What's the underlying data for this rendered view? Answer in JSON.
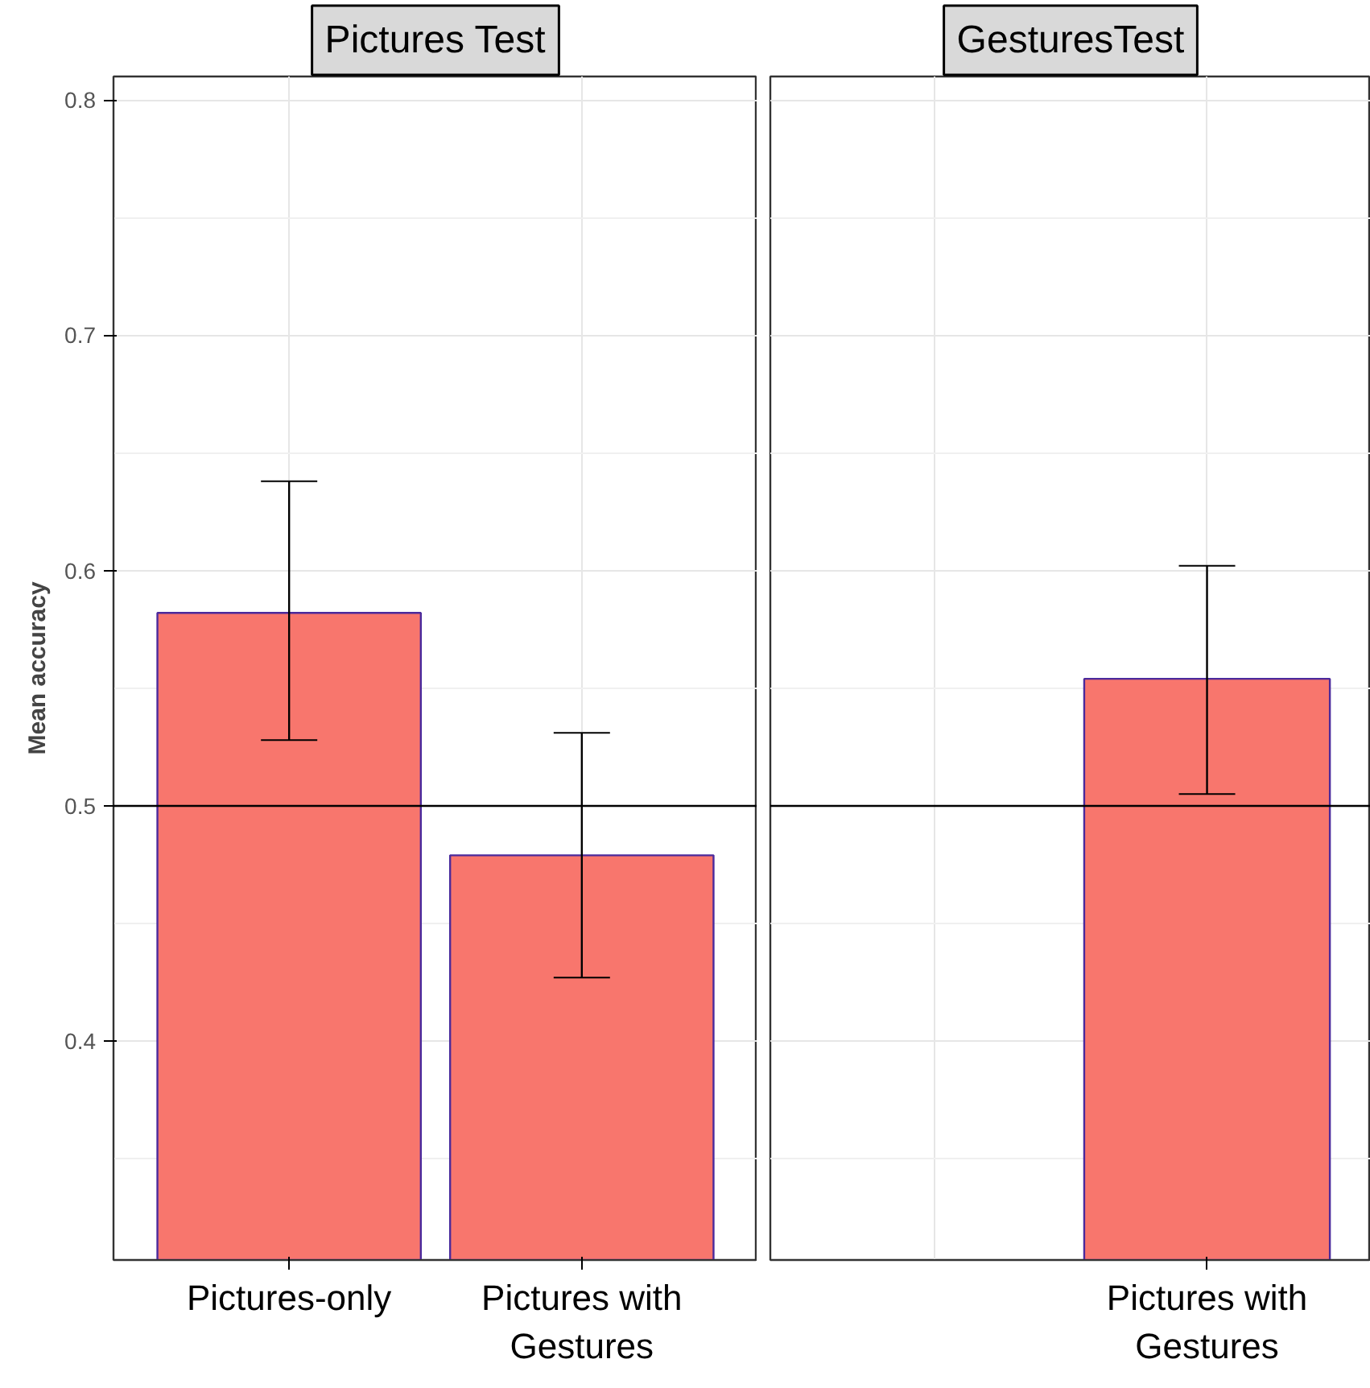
{
  "chart_data": [
    {
      "type": "bar",
      "title": "Pictures Test",
      "ylabel": "Mean accuracy",
      "categories": [
        "Pictures-only",
        "Pictures with Gestures"
      ],
      "values": [
        0.582,
        0.479
      ],
      "color": "#f8766d",
      "errors": [
        [
          0.528,
          0.638
        ],
        [
          0.427,
          0.531
        ]
      ],
      "ylim": [
        0.307,
        0.81
      ],
      "yticks": [
        0.4,
        0.5,
        0.6,
        0.7,
        0.8
      ],
      "grid": true,
      "ref_lines": [
        {
          "axis": "y",
          "value": 0.5
        }
      ]
    },
    {
      "type": "bar",
      "title": "GesturesTest",
      "categories": [
        "Pictures with Gestures"
      ],
      "values": [
        0.554
      ],
      "color": "#f8766d",
      "errors": [
        [
          0.505,
          0.602
        ]
      ],
      "ylim": [
        0.307,
        0.81
      ],
      "yticks": [
        0.4,
        0.5,
        0.6,
        0.7,
        0.8
      ],
      "grid": true,
      "tick_labels": "x",
      "ref_lines": [
        {
          "axis": "y",
          "value": 0.5
        }
      ]
    }
  ]
}
